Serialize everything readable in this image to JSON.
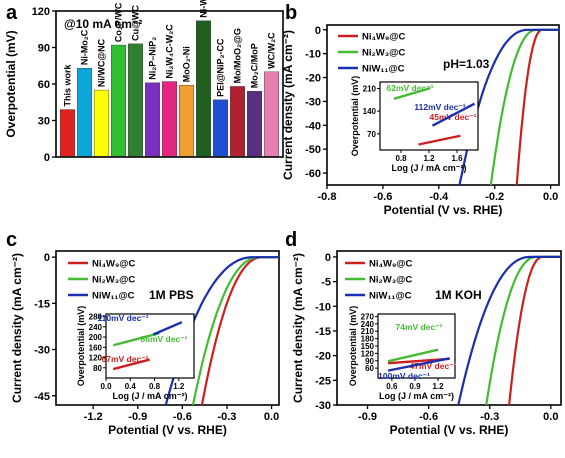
{
  "chart_data": [
    {
      "panel": "a",
      "type": "bar",
      "annotation": "@10 mA cm⁻²",
      "ylabel": "Overpotential (mV)",
      "ylim": [
        0,
        120
      ],
      "yticks": [
        0,
        30,
        60,
        90,
        120
      ],
      "categories": [
        "This work",
        "Ni-Mo₂C",
        "Ni/WC@NC",
        "Co₂P/WC",
        "Cu@WC",
        "Ni₂P–NiP₂",
        "Ni₂W₄C-W₂C",
        "MoO₂-Ni",
        "Ni-WP₂",
        "PEI@NiP₂-CC",
        "Mo/MoO₂@G",
        "Mo₂C/MoP",
        "WC/W₂C"
      ],
      "values": [
        39,
        73,
        55,
        92,
        93,
        61,
        62,
        59,
        112,
        47,
        58,
        54,
        70
      ],
      "colors": [
        "#e0211f",
        "#0ea5d8",
        "#ffff00",
        "#2fbf2f",
        "#2f7f2f",
        "#7b2fbf",
        "#e5257f",
        "#f0a030",
        "#1f5f1f",
        "#1e4fd0",
        "#b0222f",
        "#5a2f7f",
        "#e67fb0"
      ]
    },
    {
      "panel": "b",
      "type": "line",
      "xlabel": "Potential (V vs. RHE)",
      "ylabel": "Current density (mA cm⁻²)",
      "xlim": [
        -0.8,
        0.03
      ],
      "ylim": [
        -65,
        2
      ],
      "xticks": [
        -0.8,
        -0.6,
        -0.4,
        -0.2,
        0.0
      ],
      "xtick_labels": [
        "-0.8",
        "-0.6",
        "-0.4",
        "-0.2",
        "0.0"
      ],
      "yticks": [
        0,
        -10,
        -20,
        -30,
        -40,
        -50,
        -60
      ],
      "note": "pH=1.03",
      "series": [
        {
          "name": "Ni₄W₉@C",
          "color": "#cc2020",
          "onset": -0.03,
          "k": -0.039
        },
        {
          "name": "Ni₂W₃@C",
          "color": "#44bb33",
          "onset": -0.05,
          "k": -0.07
        },
        {
          "name": "NiW₁₁@C",
          "color": "#1a2fb0",
          "onset": -0.08,
          "k": -0.105
        }
      ],
      "inset": {
        "xlabel": "Log (J / mA cm⁻²)",
        "ylabel": "Overpotential (mV)",
        "xlim": [
          0.5,
          1.9
        ],
        "ylim": [
          20,
          230
        ],
        "xticks": [
          0.8,
          1.2,
          1.6
        ],
        "yticks": [
          70,
          140,
          210
        ],
        "series": [
          {
            "color": "#cc2020",
            "x": [
              1.05,
              1.65
            ],
            "y": [
              37,
              64
            ],
            "slope_label": "45mV dec⁻¹"
          },
          {
            "color": "#44bb33",
            "x": [
              0.7,
              1.22
            ],
            "y": [
              178,
              211
            ],
            "slope_label": "62mV dec⁻¹"
          },
          {
            "color": "#1a2fb0",
            "x": [
              1.25,
              1.85
            ],
            "y": [
              95,
              163
            ],
            "slope_label": "112mV dec⁻¹"
          }
        ]
      }
    },
    {
      "panel": "c",
      "type": "line",
      "xlabel": "Potential (V vs. RHE)",
      "ylabel": "Current density (mA cm⁻²)",
      "xlim": [
        -1.45,
        0.05
      ],
      "ylim": [
        -48,
        2
      ],
      "xticks": [
        -1.2,
        -0.9,
        -0.6,
        -0.3,
        0.0
      ],
      "xtick_labels": [
        "-1.2",
        "-0.9",
        "-0.6",
        "-0.3",
        "0.0"
      ],
      "yticks": [
        0,
        -15,
        -30,
        -45
      ],
      "note": "1M PBS",
      "series": [
        {
          "name": "Ni₄W₉@C",
          "color": "#cc2020",
          "onset": -0.06,
          "k": -0.2
        },
        {
          "name": "Ni₂W₃@C",
          "color": "#44bb33",
          "onset": -0.08,
          "k": -0.22
        },
        {
          "name": "NiW₁₁@C",
          "color": "#1a2fb0",
          "onset": -0.12,
          "k": -0.29
        }
      ],
      "inset": {
        "xlabel": "Log (J / mA cm⁻²)",
        "ylabel": "Overpotential (mV)",
        "xlim": [
          0.0,
          1.45
        ],
        "ylim": [
          40,
          290
        ],
        "xticks": [
          0.0,
          0.4,
          0.8,
          1.2
        ],
        "yticks": [
          80,
          120,
          160,
          200,
          240,
          280
        ],
        "series": [
          {
            "color": "#cc2020",
            "x": [
              0.12,
              0.72
            ],
            "y": [
              75,
              112
            ],
            "slope_label": "67mV dec⁻¹"
          },
          {
            "color": "#44bb33",
            "x": [
              0.12,
              0.88
            ],
            "y": [
              168,
              215
            ],
            "slope_label": "86mV dec⁻¹"
          },
          {
            "color": "#1a2fb0",
            "x": [
              0.78,
              1.25
            ],
            "y": [
              210,
              258
            ],
            "slope_label": "110mV dec⁻¹"
          }
        ]
      }
    },
    {
      "panel": "d",
      "type": "line",
      "xlabel": "Potential (V vs. RHE)",
      "ylabel": "Current density (mA cm⁻²)",
      "xlim": [
        -1.05,
        0.05
      ],
      "ylim": [
        -30,
        1.2
      ],
      "xticks": [
        -0.9,
        -0.6,
        -0.3,
        0.0
      ],
      "xtick_labels": [
        "-0.9",
        "-0.6",
        "-0.3",
        "0.0"
      ],
      "yticks": [
        0,
        -5,
        -10,
        -15,
        -20,
        -25,
        -30
      ],
      "note": "1M KOH",
      "series": [
        {
          "name": "Ni₄W₉@C",
          "color": "#cc2020",
          "onset": -0.04,
          "k": -0.1
        },
        {
          "name": "Ni₂W₃@C",
          "color": "#44bb33",
          "onset": -0.07,
          "k": -0.15
        },
        {
          "name": "NiW₁₁@C",
          "color": "#1a2fb0",
          "onset": -0.1,
          "k": -0.215
        }
      ],
      "inset": {
        "xlabel": "Log (J / mA cm⁻²)",
        "ylabel": "Overpotential (mV)",
        "xlim": [
          0.42,
          1.42
        ],
        "ylim": [
          20,
          280
        ],
        "xticks": [
          0.6,
          0.9,
          1.2
        ],
        "yticks": [
          60,
          90,
          120,
          150,
          180,
          210,
          240,
          270
        ],
        "series": [
          {
            "color": "#cc2020",
            "x": [
              0.55,
              1.35
            ],
            "y": [
              80,
              98
            ],
            "slope_label": "47mV dec⁻¹"
          },
          {
            "color": "#44bb33",
            "x": [
              0.55,
              1.2
            ],
            "y": [
              88,
              135
            ],
            "slope_label": "74mV dec⁻¹"
          },
          {
            "color": "#1a2fb0",
            "x": [
              0.55,
              1.35
            ],
            "y": [
              50,
              100
            ],
            "slope_label": "100mV dec⁻¹"
          }
        ]
      }
    }
  ]
}
